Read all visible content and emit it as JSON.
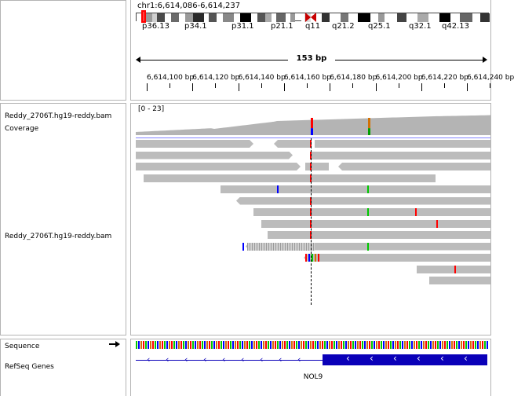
{
  "locus": "chr1:6,614,086-6,614,237",
  "ideogram": {
    "bands": [
      "p36.13",
      "p34.1",
      "p31.1",
      "p21.1",
      "q11",
      "q21.2",
      "q25.1",
      "q32.1",
      "q42.13"
    ]
  },
  "ruler": {
    "span": "153 bp",
    "ticks": [
      "6,614,100 bp",
      "6,614,120 bp",
      "6,614,140 bp",
      "6,614,160 bp",
      "6,614,180 bp",
      "6,614,200 bp",
      "6,614,220 bp",
      "6,614,240 bp"
    ]
  },
  "tracks": {
    "coverage_name": "Reddy_2706T.hg19-reddy.bam Coverage",
    "coverage_range": "[0 - 23]",
    "alignment_name": "Reddy_2706T.hg19-reddy.bam",
    "sequence_name": "Sequence",
    "refseq_name": "RefSeq Genes",
    "gene_name": "NOL9"
  },
  "colors": {
    "read": "#bcbcbc",
    "coverage": "#b4b4b4",
    "gene": "#0a00b8",
    "mismatch_A": "#00c800",
    "mismatch_C": "#0000ff",
    "mismatch_G": "#d17105",
    "mismatch_T": "#ff0000",
    "centromere": "#c80000"
  }
}
